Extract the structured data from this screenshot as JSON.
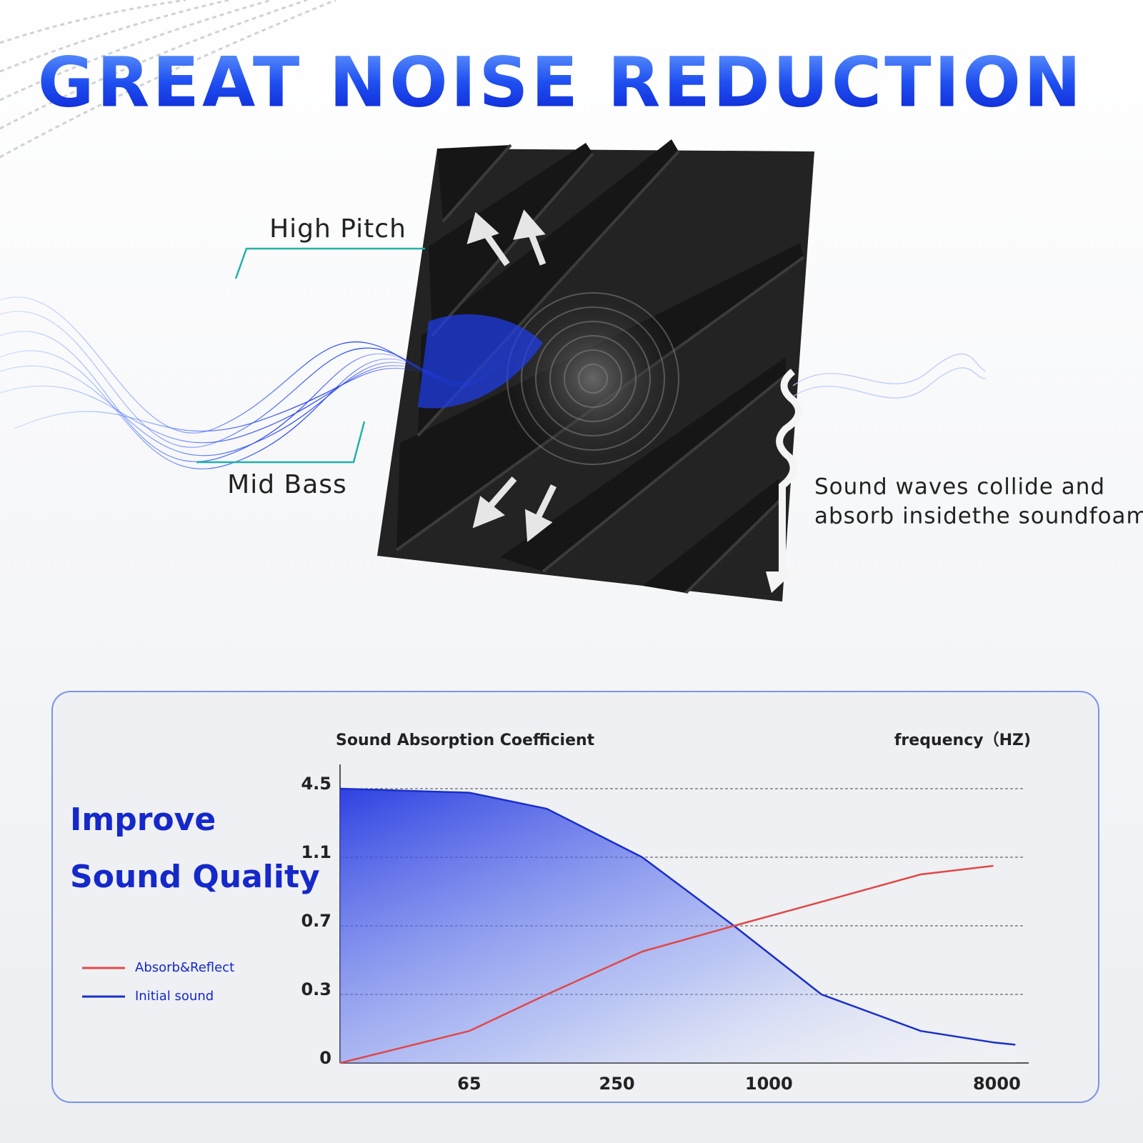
{
  "header": {
    "title": "GREAT NOISE REDUCTION"
  },
  "annotations": {
    "high_pitch": "High Pitch",
    "mid_bass": "Mid Bass",
    "absorb_note": [
      "Sound waves collide and",
      "absorb insidethe soundfoam."
    ]
  },
  "panel": {
    "headline": [
      "Improve",
      "Sound Quality"
    ]
  },
  "chart_data": {
    "type": "line",
    "y_label": "Sound Absorption Coefficient",
    "x_label": "frequency（HZ)",
    "x": [
      20,
      65,
      132,
      315,
      727,
      1616,
      4000,
      7750,
      9470
    ],
    "xlim": [
      20,
      10700
    ],
    "xticks": [
      65,
      250,
      1000,
      8000
    ],
    "xlog": true,
    "ylim": [
      0,
      4.5
    ],
    "yticks": [
      0,
      0.3,
      0.7,
      1.1,
      4.5
    ],
    "grid": true,
    "series": [
      {
        "name": "Absorb&Reflect",
        "color": "#e04848",
        "values": [
          0,
          0.14,
          0.3,
          0.55,
          0.7,
          0.84,
          1.0,
          1.05,
          null
        ]
      },
      {
        "name": "Initial sound",
        "color": "#1a2fc8",
        "area": true,
        "values": [
          4.5,
          4.3,
          3.5,
          1.1,
          0.7,
          0.3,
          0.14,
          0.09,
          0.08
        ]
      }
    ]
  }
}
